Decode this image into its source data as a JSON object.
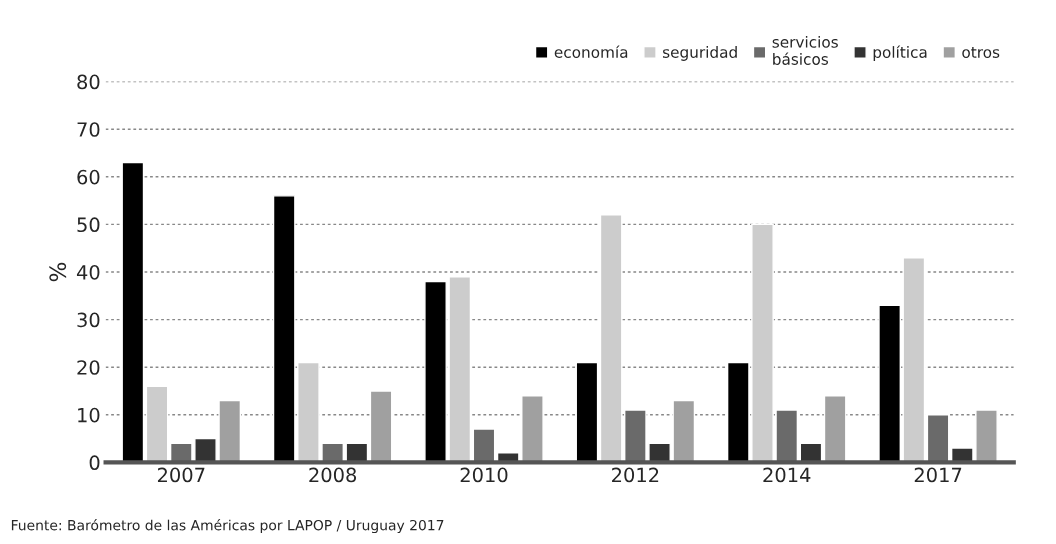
{
  "chart_data": {
    "type": "bar",
    "ylabel": "%",
    "categories": [
      "2007",
      "2008",
      "2010",
      "2012",
      "2014",
      "2017"
    ],
    "series": [
      {
        "name": "economía",
        "color": "#000000",
        "values": [
          63,
          56,
          38,
          21,
          21,
          33
        ]
      },
      {
        "name": "seguridad",
        "color": "#cccccc",
        "values": [
          16,
          21,
          39,
          52,
          50,
          43
        ]
      },
      {
        "name": "servicios\nbásicos",
        "color": "#6a6a6a",
        "values": [
          4,
          4,
          7,
          11,
          11,
          10
        ]
      },
      {
        "name": "política",
        "color": "#333333",
        "values": [
          5,
          4,
          2,
          4,
          4,
          3
        ]
      },
      {
        "name": "otros",
        "color": "#a0a0a0",
        "values": [
          13,
          15,
          14,
          13,
          14,
          11
        ]
      }
    ],
    "ylim": [
      0,
      80
    ],
    "yticks": [
      0,
      10,
      20,
      30,
      40,
      50,
      60,
      70,
      80
    ],
    "grid": "y",
    "legend": "top right",
    "annotations": [
      "Fuente: Barómetro de las Américas por LAPOP / Uruguay 2017"
    ]
  }
}
